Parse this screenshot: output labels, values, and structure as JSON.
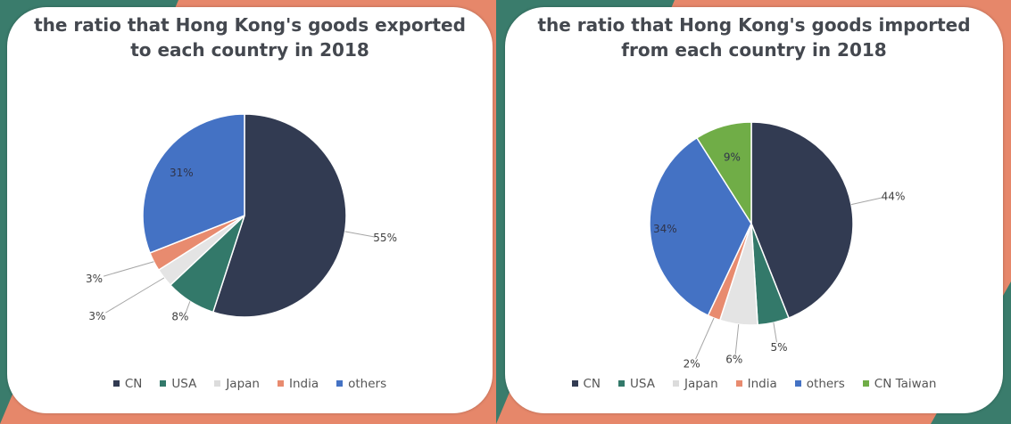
{
  "colors": {
    "CN": "#323b52",
    "USA": "#33796a",
    "Japan": "#e4e4e4",
    "India": "#e88b6f",
    "others": "#4472c4",
    "CN Taiwan": "#70ad47"
  },
  "chart_data": [
    {
      "type": "pie",
      "title": "the ratio that Hong Kong's goods exported\nto each country in 2018",
      "categories": [
        "CN",
        "USA",
        "Japan",
        "India",
        "others"
      ],
      "values": [
        55,
        8,
        3,
        3,
        31
      ],
      "labels": [
        "55%",
        "8%",
        "3%",
        "3%",
        "31%"
      ],
      "legend_position": "bottom"
    },
    {
      "type": "pie",
      "title": "the ratio that Hong Kong's goods imported\nfrom each country in 2018",
      "categories": [
        "CN",
        "USA",
        "Japan",
        "India",
        "others",
        "CN Taiwan"
      ],
      "values": [
        44,
        5,
        6,
        2,
        34,
        9
      ],
      "labels": [
        "44%",
        "5%",
        "6%",
        "2%",
        "34%",
        "9%"
      ],
      "legend_position": "bottom"
    }
  ]
}
